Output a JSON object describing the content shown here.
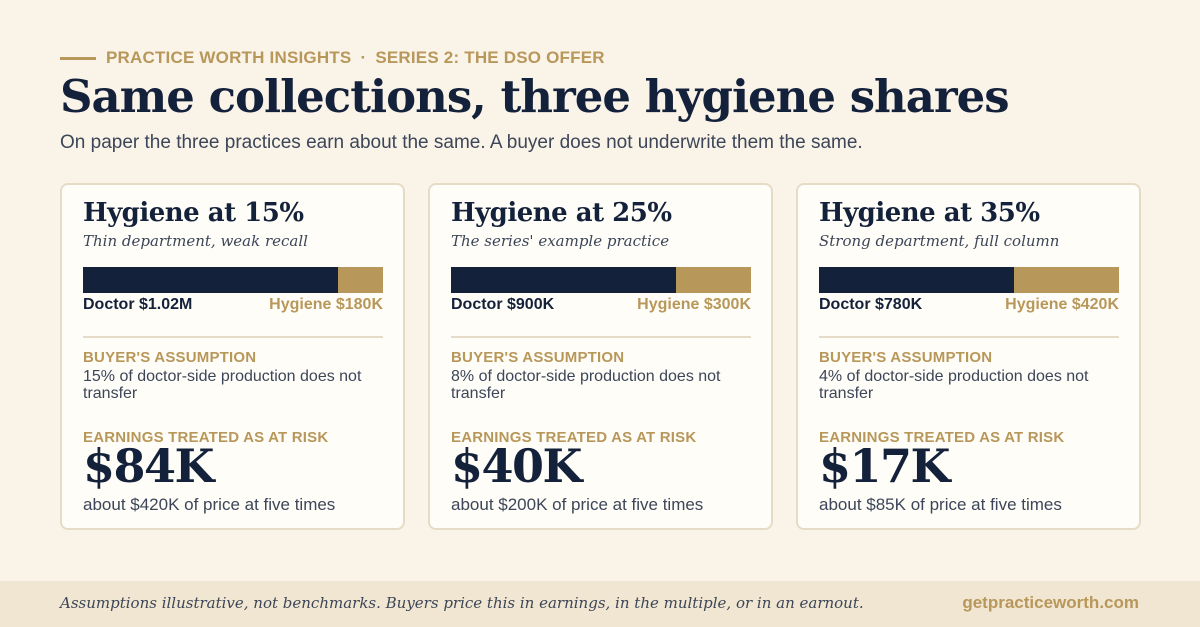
{
  "header": {
    "eyebrow_left": "PRACTICE WORTH INSIGHTS",
    "eyebrow_sep": "·",
    "eyebrow_right": "SERIES 2: THE DSO OFFER",
    "title": "Same collections, three hygiene shares",
    "subtitle": "On paper the three practices earn about the same. A buyer does not underwrite them the same."
  },
  "colors": {
    "background": "#faf3e8",
    "navy": "#14213a",
    "gold": "#b8975a",
    "card": "#fffdf8",
    "card_border": "#e6dbc6",
    "footer": "#f1e6d1"
  },
  "cards": [
    {
      "heading": "Hygiene at 15%",
      "subheading": "Thin department, weak recall",
      "doctor_share": 0.85,
      "doctor_label": "Doctor $1.02M",
      "hygiene_label": "Hygiene $180K",
      "assumption_kicker": "BUYER'S ASSUMPTION",
      "assumption": "15% of doctor-side production does not transfer",
      "risk_kicker": "EARNINGS TREATED AS AT RISK",
      "risk_value": "$84K",
      "price_note": "about $420K of price at five times"
    },
    {
      "heading": "Hygiene at 25%",
      "subheading": "The series' example practice",
      "doctor_share": 0.75,
      "doctor_label": "Doctor $900K",
      "hygiene_label": "Hygiene $300K",
      "assumption_kicker": "BUYER'S ASSUMPTION",
      "assumption": "8% of doctor-side production does not transfer",
      "risk_kicker": "EARNINGS TREATED AS AT RISK",
      "risk_value": "$40K",
      "price_note": "about $200K of price at five times"
    },
    {
      "heading": "Hygiene at 35%",
      "subheading": "Strong department, full column",
      "doctor_share": 0.65,
      "doctor_label": "Doctor $780K",
      "hygiene_label": "Hygiene $420K",
      "assumption_kicker": "BUYER'S ASSUMPTION",
      "assumption": "4% of doctor-side production does not transfer",
      "risk_kicker": "EARNINGS TREATED AS AT RISK",
      "risk_value": "$17K",
      "price_note": "about $85K of price at five times"
    }
  ],
  "footer": {
    "note": "Assumptions illustrative, not benchmarks. Buyers price this in earnings, in the multiple, or in an earnout.",
    "site": "getpracticeworth.com"
  }
}
